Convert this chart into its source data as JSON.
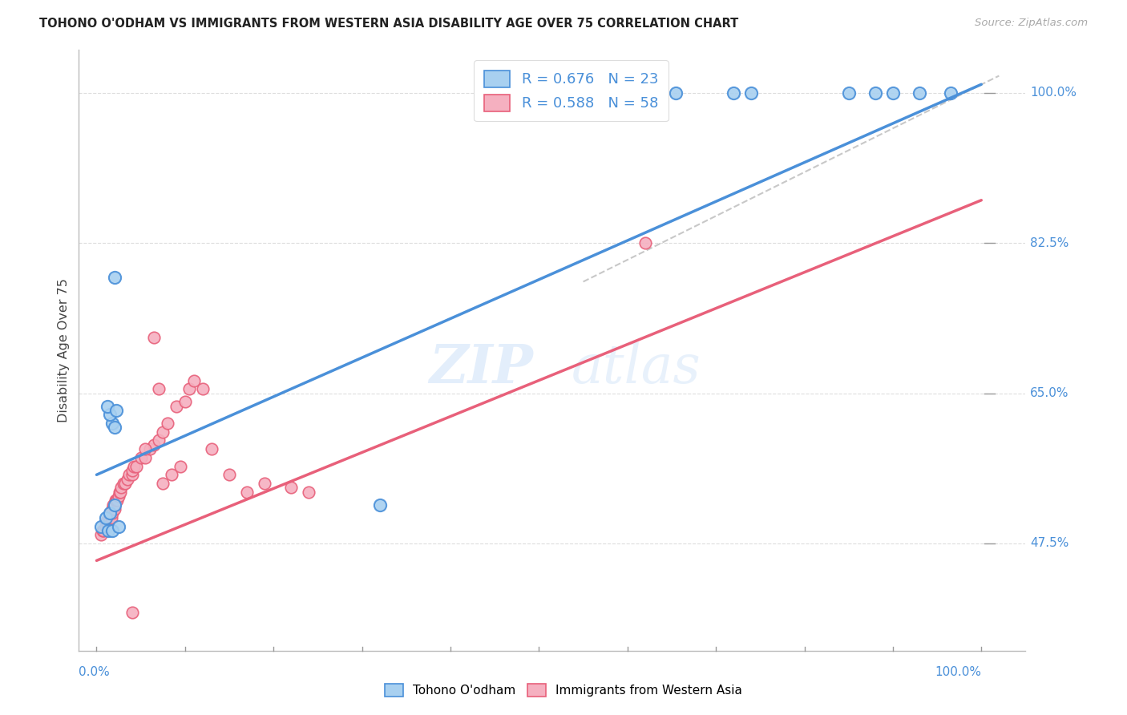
{
  "title": "TOHONO O'ODHAM VS IMMIGRANTS FROM WESTERN ASIA DISABILITY AGE OVER 75 CORRELATION CHART",
  "source": "Source: ZipAtlas.com",
  "ylabel": "Disability Age Over 75",
  "legend_label1": "Tohono O'odham",
  "legend_label2": "Immigrants from Western Asia",
  "r1": "0.676",
  "n1": "23",
  "r2": "0.588",
  "n2": "58",
  "color_blue": "#a8d0f0",
  "color_pink": "#f5b0c0",
  "color_blue_line": "#4a90d9",
  "color_pink_line": "#e8607a",
  "color_dashed": "#c8c8c8",
  "color_title": "#222222",
  "color_axis_label": "#444444",
  "color_tick_blue": "#4a90d9",
  "color_source": "#aaaaaa",
  "watermark_zip": "ZIP",
  "watermark_atlas": "atlas",
  "xmin": 0.0,
  "xmax": 1.0,
  "ymin": 0.35,
  "ymax": 1.05,
  "yticks": [
    0.475,
    0.65,
    0.825,
    1.0
  ],
  "ytick_labels": [
    "47.5%",
    "65.0%",
    "82.5%",
    "100.0%"
  ],
  "blue_line_x0": 0.0,
  "blue_line_y0": 0.555,
  "blue_line_x1": 1.0,
  "blue_line_y1": 1.01,
  "pink_line_x0": 0.0,
  "pink_line_y0": 0.455,
  "pink_line_x1": 1.0,
  "pink_line_y1": 0.875,
  "ref_line_x0": 0.55,
  "ref_line_y0": 0.78,
  "ref_line_x1": 1.02,
  "ref_line_y1": 1.02,
  "blue_x": [
    0.005,
    0.01,
    0.015,
    0.02,
    0.013,
    0.018,
    0.015,
    0.012,
    0.022,
    0.02,
    0.018,
    0.025,
    0.02,
    0.32,
    0.63,
    0.655,
    0.72,
    0.74,
    0.85,
    0.88,
    0.9,
    0.93,
    0.965
  ],
  "blue_y": [
    0.495,
    0.505,
    0.51,
    0.52,
    0.49,
    0.615,
    0.625,
    0.635,
    0.63,
    0.61,
    0.49,
    0.495,
    0.785,
    0.52,
    1.0,
    1.0,
    1.0,
    1.0,
    1.0,
    1.0,
    1.0,
    1.0,
    1.0
  ],
  "pink_x": [
    0.005,
    0.007,
    0.008,
    0.01,
    0.01,
    0.012,
    0.013,
    0.014,
    0.015,
    0.015,
    0.016,
    0.017,
    0.018,
    0.018,
    0.019,
    0.02,
    0.02,
    0.021,
    0.022,
    0.023,
    0.025,
    0.026,
    0.027,
    0.028,
    0.03,
    0.032,
    0.035,
    0.037,
    0.04,
    0.04,
    0.042,
    0.045,
    0.05,
    0.055,
    0.06,
    0.065,
    0.07,
    0.075,
    0.08,
    0.09,
    0.1,
    0.105,
    0.11,
    0.12,
    0.13,
    0.15,
    0.17,
    0.19,
    0.22,
    0.24,
    0.065,
    0.07,
    0.055,
    0.075,
    0.085,
    0.095,
    0.62,
    0.04
  ],
  "pink_y": [
    0.485,
    0.49,
    0.49,
    0.495,
    0.5,
    0.5,
    0.495,
    0.505,
    0.505,
    0.51,
    0.51,
    0.505,
    0.51,
    0.515,
    0.52,
    0.515,
    0.52,
    0.525,
    0.525,
    0.525,
    0.53,
    0.535,
    0.535,
    0.54,
    0.545,
    0.545,
    0.55,
    0.555,
    0.555,
    0.56,
    0.565,
    0.565,
    0.575,
    0.575,
    0.585,
    0.59,
    0.595,
    0.605,
    0.615,
    0.635,
    0.64,
    0.655,
    0.665,
    0.655,
    0.585,
    0.555,
    0.535,
    0.545,
    0.54,
    0.535,
    0.715,
    0.655,
    0.585,
    0.545,
    0.555,
    0.565,
    0.825,
    0.395
  ]
}
